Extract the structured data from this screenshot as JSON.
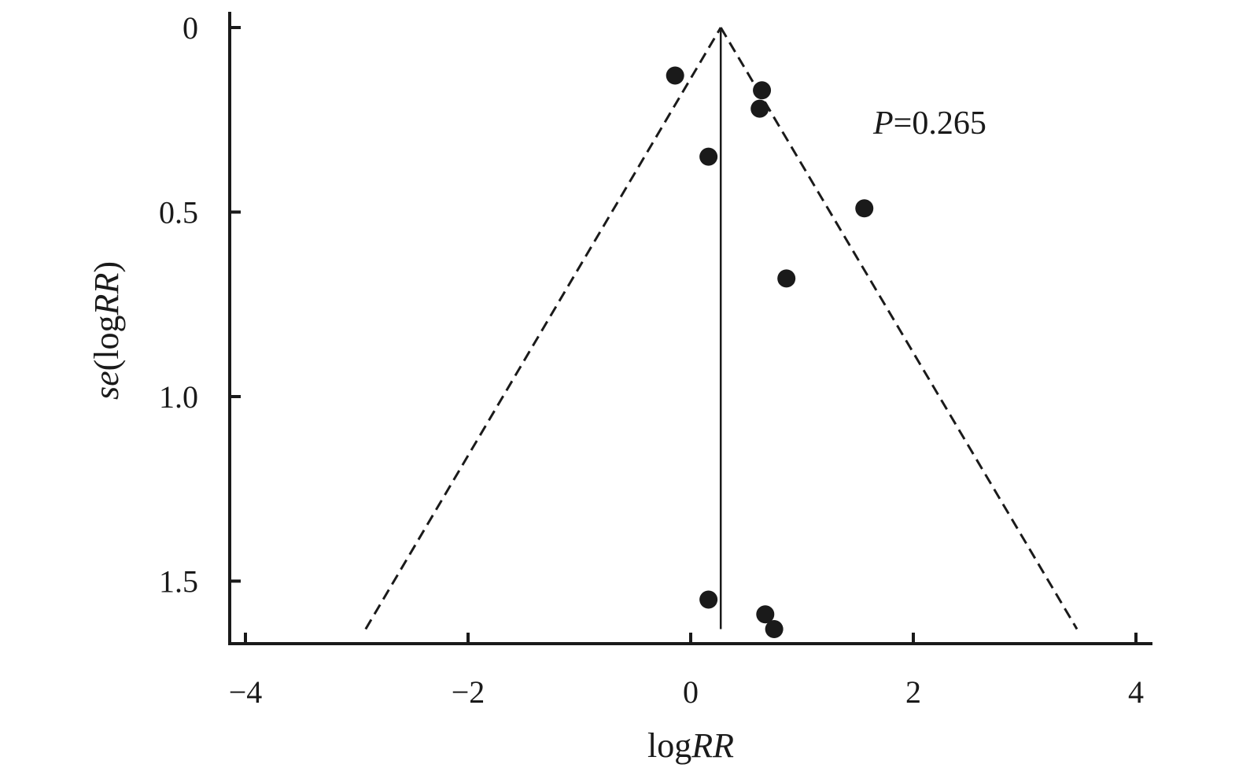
{
  "chart_data": {
    "type": "scatter",
    "chart_kind": "funnel plot",
    "xlabel": {
      "prefix": "log",
      "italic": "RR"
    },
    "ylabel": {
      "italic": "se",
      "paren_prefix": "log",
      "paren_italic": "RR"
    },
    "xlim": [
      -4.1,
      4.1
    ],
    "ylim": [
      0,
      1.67
    ],
    "y_inverted": true,
    "x_ticks": [
      -4,
      -2,
      0,
      2,
      4
    ],
    "x_tick_labels": [
      "−4",
      "−2",
      "0",
      "2",
      "4"
    ],
    "y_ticks": [
      0,
      0.5,
      1.0,
      1.5
    ],
    "y_tick_labels": [
      "0",
      "0.5",
      "1.0",
      "1.5"
    ],
    "pooled_estimate": 0.27,
    "funnel": {
      "apex": [
        0.27,
        0
      ],
      "base_left": [
        -2.92,
        1.63
      ],
      "base_right": [
        3.47,
        1.63
      ]
    },
    "points": [
      {
        "x": -0.14,
        "y": 0.13
      },
      {
        "x": 0.64,
        "y": 0.17
      },
      {
        "x": 0.62,
        "y": 0.22
      },
      {
        "x": 0.16,
        "y": 0.35
      },
      {
        "x": 1.56,
        "y": 0.49
      },
      {
        "x": 0.86,
        "y": 0.68
      },
      {
        "x": 0.16,
        "y": 1.55
      },
      {
        "x": 0.67,
        "y": 1.59
      },
      {
        "x": 0.75,
        "y": 1.63
      }
    ],
    "annotation": {
      "italic": "P",
      "text": "=0.265"
    },
    "grid": false,
    "legend": "none",
    "colors": {
      "points": "#1a1a1a",
      "lines": "#1a1a1a"
    }
  }
}
